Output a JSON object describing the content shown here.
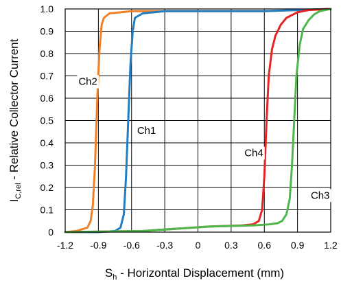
{
  "chart_data": {
    "type": "line",
    "xlim": [
      -1.2,
      1.2
    ],
    "ylim": [
      0,
      1.0
    ],
    "x_ticks": [
      {
        "value": -1.2,
        "label": "-1.2"
      },
      {
        "value": -0.9,
        "label": "-0.9"
      },
      {
        "value": -0.6,
        "label": "-0.6"
      },
      {
        "value": -0.3,
        "label": "-0.3"
      },
      {
        "value": 0,
        "label": "0"
      },
      {
        "value": 0.3,
        "label": "0.3"
      },
      {
        "value": 0.6,
        "label": "0.6"
      },
      {
        "value": 0.9,
        "label": "0.9"
      },
      {
        "value": 1.2,
        "label": "1.2"
      }
    ],
    "y_ticks": [
      {
        "value": 0,
        "label": "0"
      },
      {
        "value": 0.1,
        "label": "0.1"
      },
      {
        "value": 0.2,
        "label": "0.2"
      },
      {
        "value": 0.3,
        "label": "0.3"
      },
      {
        "value": 0.4,
        "label": "0.4"
      },
      {
        "value": 0.5,
        "label": "0.5"
      },
      {
        "value": 0.6,
        "label": "0.6"
      },
      {
        "value": 0.7,
        "label": "0.7"
      },
      {
        "value": 0.8,
        "label": "0.8"
      },
      {
        "value": 0.9,
        "label": "0.9"
      },
      {
        "value": 1.0,
        "label": "1.0"
      }
    ],
    "xlabel": {
      "main": "S",
      "sub": "h",
      "rest": " - Horizontal Displacement (mm)"
    },
    "ylabel": {
      "main": "I",
      "sub": "C,rel",
      "rest": " - Relative Collector Current"
    },
    "grid": true,
    "series": [
      {
        "name": "Ch2",
        "color": "#f07f25",
        "label_at": {
          "x": -1.08,
          "y": 0.66
        },
        "points": [
          [
            -1.2,
            0.0
          ],
          [
            -1.1,
            0.005
          ],
          [
            -1.0,
            0.02
          ],
          [
            -0.97,
            0.05
          ],
          [
            -0.95,
            0.12
          ],
          [
            -0.93,
            0.3
          ],
          [
            -0.91,
            0.6
          ],
          [
            -0.89,
            0.82
          ],
          [
            -0.87,
            0.93
          ],
          [
            -0.85,
            0.96
          ],
          [
            -0.8,
            0.98
          ],
          [
            -0.6,
            0.99
          ],
          [
            0.0,
            0.99
          ],
          [
            0.6,
            0.99
          ],
          [
            1.2,
            1.0
          ]
        ]
      },
      {
        "name": "Ch1",
        "color": "#1f7ec2",
        "label_at": {
          "x": -0.55,
          "y": 0.44
        },
        "points": [
          [
            -1.2,
            0.0
          ],
          [
            -0.9,
            0.0
          ],
          [
            -0.75,
            0.005
          ],
          [
            -0.7,
            0.02
          ],
          [
            -0.67,
            0.08
          ],
          [
            -0.65,
            0.25
          ],
          [
            -0.63,
            0.5
          ],
          [
            -0.61,
            0.75
          ],
          [
            -0.59,
            0.9
          ],
          [
            -0.57,
            0.96
          ],
          [
            -0.5,
            0.98
          ],
          [
            -0.3,
            0.99
          ],
          [
            0.6,
            0.99
          ],
          [
            1.2,
            1.0
          ]
        ]
      },
      {
        "name": "Ch4",
        "color": "#e42526",
        "label_at": {
          "x": 0.42,
          "y": 0.34
        },
        "points": [
          [
            -1.2,
            0.0
          ],
          [
            -0.5,
            0.005
          ],
          [
            -0.2,
            0.015
          ],
          [
            0.1,
            0.025
          ],
          [
            0.4,
            0.03
          ],
          [
            0.5,
            0.035
          ],
          [
            0.55,
            0.05
          ],
          [
            0.58,
            0.1
          ],
          [
            0.6,
            0.25
          ],
          [
            0.62,
            0.5
          ],
          [
            0.64,
            0.7
          ],
          [
            0.67,
            0.82
          ],
          [
            0.7,
            0.88
          ],
          [
            0.75,
            0.93
          ],
          [
            0.8,
            0.96
          ],
          [
            0.9,
            0.985
          ],
          [
            1.0,
            0.995
          ],
          [
            1.2,
            1.0
          ]
        ]
      },
      {
        "name": "Ch3",
        "color": "#4db74b",
        "label_at": {
          "x": 1.02,
          "y": 0.15
        },
        "points": [
          [
            -1.2,
            0.0
          ],
          [
            -0.5,
            0.005
          ],
          [
            -0.2,
            0.015
          ],
          [
            0.1,
            0.025
          ],
          [
            0.5,
            0.03
          ],
          [
            0.65,
            0.035
          ],
          [
            0.72,
            0.04
          ],
          [
            0.76,
            0.05
          ],
          [
            0.8,
            0.08
          ],
          [
            0.83,
            0.15
          ],
          [
            0.85,
            0.3
          ],
          [
            0.87,
            0.5
          ],
          [
            0.89,
            0.7
          ],
          [
            0.92,
            0.84
          ],
          [
            0.95,
            0.91
          ],
          [
            1.0,
            0.95
          ],
          [
            1.05,
            0.975
          ],
          [
            1.1,
            0.99
          ],
          [
            1.2,
            1.0
          ]
        ]
      }
    ]
  }
}
